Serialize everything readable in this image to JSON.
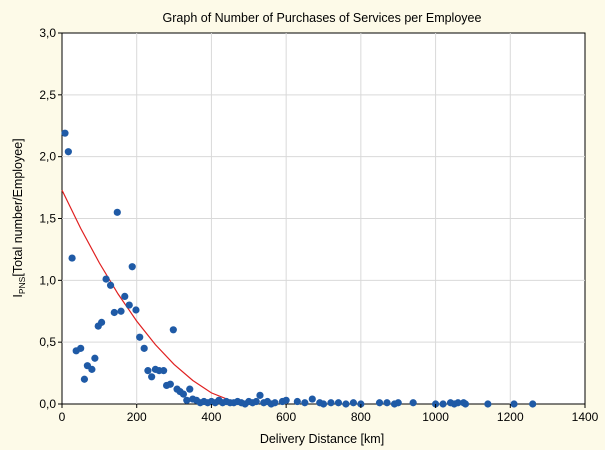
{
  "chart_data": {
    "type": "scatter",
    "title": "Graph of Number of Purchases of Services per Employee",
    "xlabel": "Delivery Distance [km]",
    "ylabel": {
      "main": "I",
      "sub": "PNS",
      "rest": "[Total number/Employee]"
    },
    "xlim": [
      0,
      1400
    ],
    "ylim": [
      0,
      3
    ],
    "x_ticks": [
      0,
      200,
      400,
      600,
      800,
      1000,
      1200,
      1400
    ],
    "x_tick_labels": [
      "0",
      "200",
      "400",
      "600",
      "800",
      "1000",
      "1200",
      "1400"
    ],
    "y_ticks": [
      0,
      0.5,
      1,
      1.5,
      2,
      2.5,
      3
    ],
    "y_tick_labels": [
      "0,0",
      "0,5",
      "1,0",
      "1,5",
      "2,0",
      "2,5",
      "3,0"
    ],
    "grid": true,
    "colors": {
      "points": "#1f5aa6",
      "fit": "#e02020"
    },
    "points": [
      [
        8,
        2.19
      ],
      [
        17,
        2.04
      ],
      [
        27,
        1.18
      ],
      [
        38,
        0.43
      ],
      [
        50,
        0.45
      ],
      [
        60,
        0.2
      ],
      [
        68,
        0.31
      ],
      [
        80,
        0.28
      ],
      [
        88,
        0.37
      ],
      [
        97,
        0.63
      ],
      [
        106,
        0.66
      ],
      [
        118,
        1.01
      ],
      [
        130,
        0.96
      ],
      [
        140,
        0.74
      ],
      [
        148,
        1.55
      ],
      [
        158,
        0.75
      ],
      [
        168,
        0.87
      ],
      [
        180,
        0.8
      ],
      [
        188,
        1.11
      ],
      [
        198,
        0.76
      ],
      [
        208,
        0.54
      ],
      [
        220,
        0.45
      ],
      [
        230,
        0.27
      ],
      [
        240,
        0.22
      ],
      [
        250,
        0.28
      ],
      [
        260,
        0.27
      ],
      [
        272,
        0.27
      ],
      [
        280,
        0.15
      ],
      [
        290,
        0.16
      ],
      [
        298,
        0.6
      ],
      [
        308,
        0.12
      ],
      [
        316,
        0.1
      ],
      [
        325,
        0.08
      ],
      [
        334,
        0.03
      ],
      [
        342,
        0.12
      ],
      [
        350,
        0.04
      ],
      [
        360,
        0.03
      ],
      [
        370,
        0.01
      ],
      [
        380,
        0.02
      ],
      [
        390,
        0.01
      ],
      [
        400,
        0.02
      ],
      [
        410,
        0.01
      ],
      [
        420,
        0.03
      ],
      [
        430,
        0.01
      ],
      [
        440,
        0.02
      ],
      [
        450,
        0.01
      ],
      [
        460,
        0.01
      ],
      [
        470,
        0.02
      ],
      [
        480,
        0.01
      ],
      [
        490,
        0.0
      ],
      [
        500,
        0.02
      ],
      [
        510,
        0.01
      ],
      [
        520,
        0.02
      ],
      [
        530,
        0.07
      ],
      [
        540,
        0.01
      ],
      [
        550,
        0.02
      ],
      [
        560,
        0.0
      ],
      [
        570,
        0.01
      ],
      [
        590,
        0.02
      ],
      [
        600,
        0.03
      ],
      [
        630,
        0.02
      ],
      [
        650,
        0.01
      ],
      [
        670,
        0.04
      ],
      [
        690,
        0.01
      ],
      [
        700,
        0.0
      ],
      [
        720,
        0.01
      ],
      [
        740,
        0.01
      ],
      [
        760,
        0.0
      ],
      [
        780,
        0.01
      ],
      [
        800,
        0.0
      ],
      [
        850,
        0.01
      ],
      [
        870,
        0.01
      ],
      [
        890,
        0.0
      ],
      [
        900,
        0.01
      ],
      [
        940,
        0.01
      ],
      [
        1000,
        0.0
      ],
      [
        1020,
        0.0
      ],
      [
        1040,
        0.01
      ],
      [
        1050,
        0.0
      ],
      [
        1060,
        0.01
      ],
      [
        1075,
        0.01
      ],
      [
        1080,
        0.0
      ],
      [
        1140,
        0.0
      ],
      [
        1210,
        0.0
      ],
      [
        1260,
        0.0
      ]
    ],
    "fit_curve": {
      "description": "red decreasing trend line",
      "x": [
        0,
        50,
        100,
        150,
        200,
        250,
        300,
        350,
        400,
        450,
        500
      ],
      "y": [
        1.73,
        1.42,
        1.14,
        0.89,
        0.67,
        0.48,
        0.32,
        0.19,
        0.09,
        0.03,
        0.0
      ]
    }
  }
}
